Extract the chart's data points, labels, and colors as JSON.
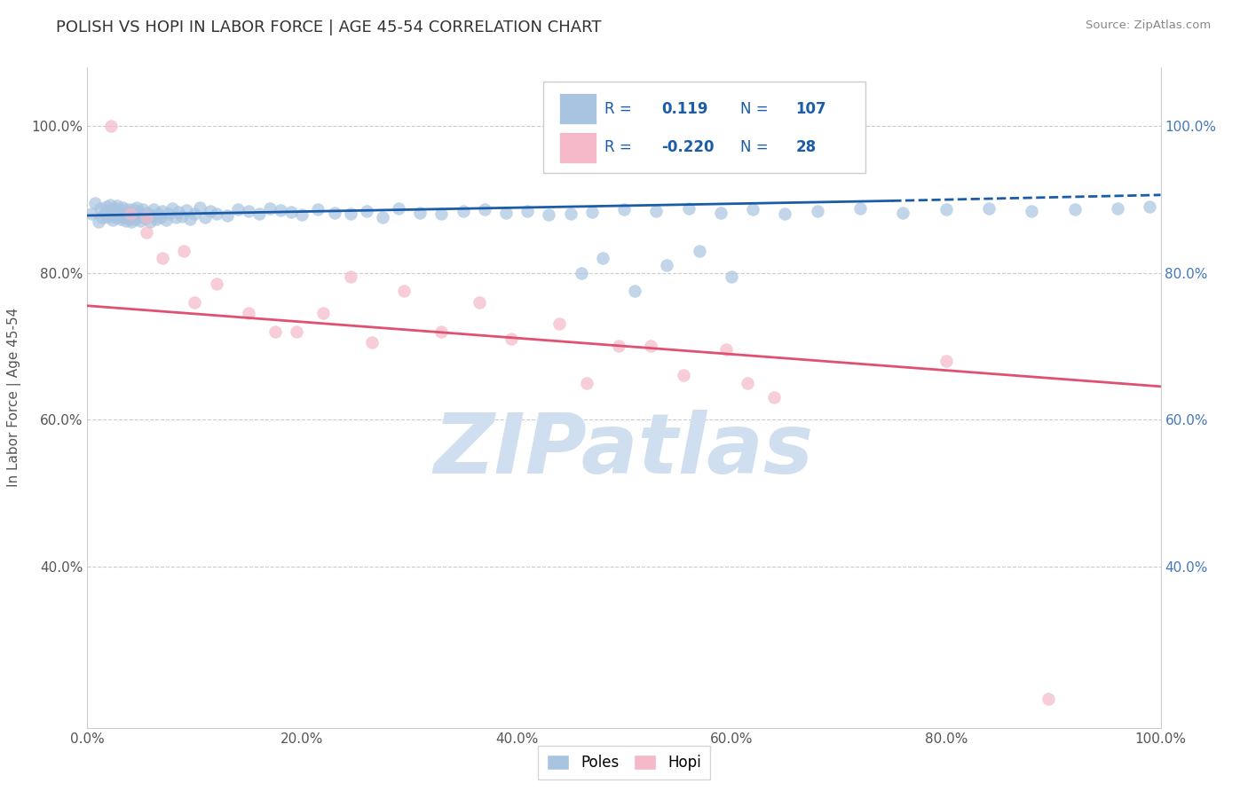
{
  "title": "POLISH VS HOPI IN LABOR FORCE | AGE 45-54 CORRELATION CHART",
  "source_text": "Source: ZipAtlas.com",
  "ylabel": "In Labor Force | Age 45-54",
  "xlim": [
    0.0,
    1.0
  ],
  "ylim": [
    0.18,
    1.08
  ],
  "xticks": [
    0.0,
    0.2,
    0.4,
    0.6,
    0.8,
    1.0
  ],
  "yticks": [
    0.4,
    0.6,
    0.8,
    1.0
  ],
  "xticklabels": [
    "0.0%",
    "20.0%",
    "40.0%",
    "60.0%",
    "80.0%",
    "100.0%"
  ],
  "yticklabels": [
    "40.0%",
    "60.0%",
    "80.0%",
    "100.0%"
  ],
  "blue_color": "#a8c4e0",
  "blue_line_color": "#1a5ca8",
  "pink_color": "#f4b8c8",
  "pink_line_color": "#e05070",
  "legend_text_color": "#1a5ca8",
  "watermark": "ZIPatlas",
  "watermark_color": "#d0dff0",
  "poles_R": "0.119",
  "poles_N": "107",
  "hopi_R": "-0.220",
  "hopi_N": "28",
  "poles_trend_solid": [
    0.0,
    0.75,
    0.878,
    0.898
  ],
  "poles_trend_dashed": [
    0.75,
    1.0,
    0.898,
    0.906
  ],
  "hopi_trend": [
    0.0,
    1.0,
    0.755,
    0.645
  ],
  "poles_x": [
    0.004,
    0.007,
    0.01,
    0.012,
    0.014,
    0.016,
    0.018,
    0.019,
    0.02,
    0.021,
    0.022,
    0.023,
    0.024,
    0.025,
    0.026,
    0.027,
    0.028,
    0.028,
    0.029,
    0.03,
    0.031,
    0.032,
    0.033,
    0.034,
    0.035,
    0.036,
    0.037,
    0.038,
    0.039,
    0.04,
    0.041,
    0.042,
    0.043,
    0.044,
    0.045,
    0.046,
    0.047,
    0.048,
    0.049,
    0.05,
    0.052,
    0.054,
    0.056,
    0.058,
    0.06,
    0.062,
    0.064,
    0.066,
    0.068,
    0.07,
    0.073,
    0.076,
    0.079,
    0.082,
    0.085,
    0.088,
    0.092,
    0.096,
    0.1,
    0.105,
    0.11,
    0.115,
    0.12,
    0.13,
    0.14,
    0.15,
    0.16,
    0.17,
    0.18,
    0.19,
    0.2,
    0.215,
    0.23,
    0.245,
    0.26,
    0.275,
    0.29,
    0.31,
    0.33,
    0.35,
    0.37,
    0.39,
    0.41,
    0.43,
    0.45,
    0.47,
    0.5,
    0.53,
    0.56,
    0.59,
    0.62,
    0.65,
    0.68,
    0.72,
    0.76,
    0.8,
    0.84,
    0.88,
    0.92,
    0.96,
    0.99,
    0.46,
    0.48,
    0.51,
    0.54,
    0.57,
    0.6
  ],
  "poles_y": [
    0.88,
    0.895,
    0.87,
    0.888,
    0.875,
    0.882,
    0.89,
    0.876,
    0.884,
    0.892,
    0.878,
    0.886,
    0.872,
    0.88,
    0.888,
    0.875,
    0.883,
    0.891,
    0.877,
    0.885,
    0.873,
    0.881,
    0.889,
    0.875,
    0.883,
    0.871,
    0.879,
    0.887,
    0.874,
    0.882,
    0.87,
    0.878,
    0.886,
    0.873,
    0.881,
    0.889,
    0.875,
    0.883,
    0.871,
    0.879,
    0.887,
    0.874,
    0.882,
    0.87,
    0.878,
    0.886,
    0.873,
    0.881,
    0.876,
    0.884,
    0.872,
    0.88,
    0.888,
    0.875,
    0.883,
    0.877,
    0.885,
    0.873,
    0.881,
    0.889,
    0.876,
    0.884,
    0.88,
    0.878,
    0.886,
    0.884,
    0.88,
    0.888,
    0.885,
    0.883,
    0.879,
    0.887,
    0.882,
    0.88,
    0.884,
    0.876,
    0.888,
    0.882,
    0.88,
    0.884,
    0.886,
    0.882,
    0.884,
    0.879,
    0.881,
    0.883,
    0.886,
    0.884,
    0.888,
    0.882,
    0.886,
    0.88,
    0.884,
    0.888,
    0.882,
    0.886,
    0.888,
    0.884,
    0.886,
    0.888,
    0.89,
    0.8,
    0.82,
    0.775,
    0.81,
    0.83,
    0.795
  ],
  "hopi_x": [
    0.022,
    0.04,
    0.055,
    0.055,
    0.07,
    0.09,
    0.1,
    0.12,
    0.15,
    0.175,
    0.195,
    0.22,
    0.245,
    0.265,
    0.295,
    0.33,
    0.365,
    0.395,
    0.44,
    0.465,
    0.495,
    0.525,
    0.555,
    0.595,
    0.615,
    0.64,
    0.8,
    0.895
  ],
  "hopi_y": [
    1.0,
    0.88,
    0.855,
    0.875,
    0.82,
    0.83,
    0.76,
    0.785,
    0.745,
    0.72,
    0.72,
    0.745,
    0.795,
    0.705,
    0.775,
    0.72,
    0.76,
    0.71,
    0.73,
    0.65,
    0.7,
    0.7,
    0.66,
    0.695,
    0.65,
    0.63,
    0.68,
    0.22
  ]
}
